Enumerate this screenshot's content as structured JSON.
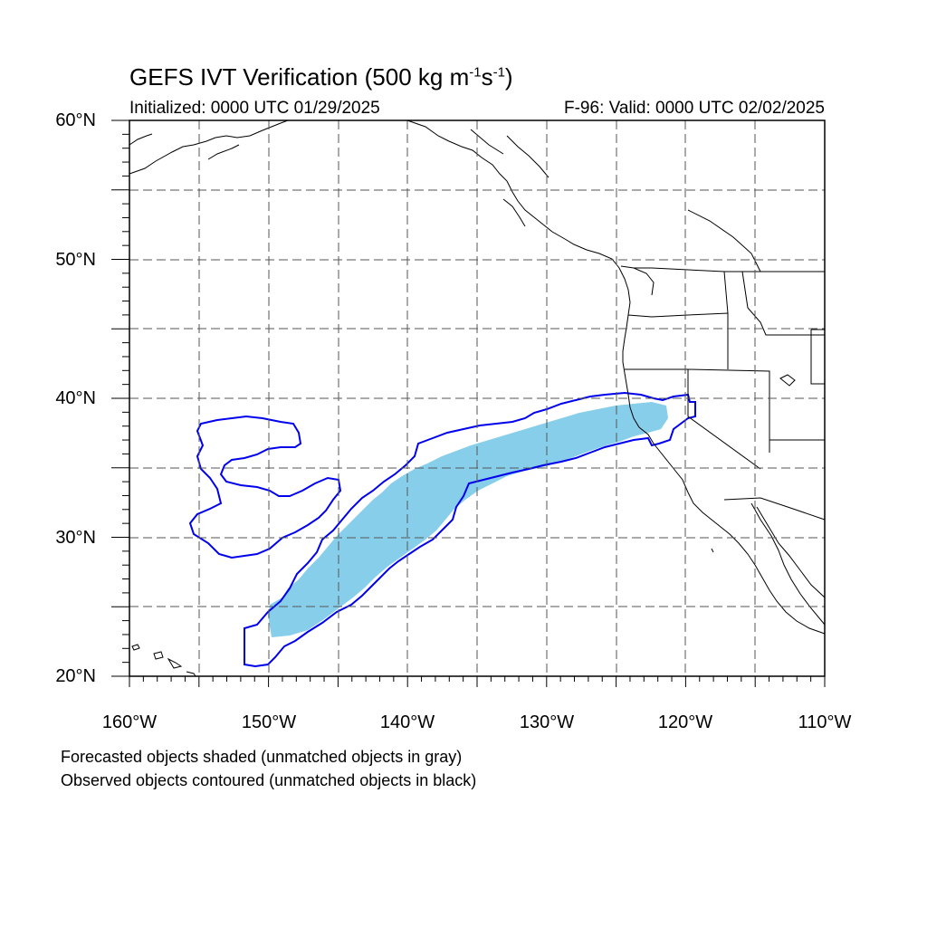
{
  "title": {
    "main": "GEFS IVT Verification (500 kg m",
    "exp1": "-1",
    "mid": "s",
    "exp2": "-1",
    "end": ")"
  },
  "subtitle": {
    "initialized": "Initialized: 0000 UTC 01/29/2025",
    "valid": "F-96: Valid: 0000 UTC 02/02/2025"
  },
  "axes": {
    "lat_labels": [
      "60°N",
      "50°N",
      "40°N",
      "30°N",
      "20°N"
    ],
    "lon_labels": [
      "160°W",
      "150°W",
      "140°W",
      "130°W",
      "120°W",
      "110°W"
    ],
    "lat_range": [
      20,
      60
    ],
    "lon_range": [
      -160,
      -110
    ],
    "gridline_spacing_deg": 5
  },
  "legend": {
    "line1": "Forecasted objects shaded (unmatched objects in gray)",
    "line2": "Observed objects contoured (unmatched objects in black)"
  },
  "colors": {
    "forecast_fill": "#87ceeb",
    "observed_contour": "#0000ee",
    "coastline": "#000000",
    "grid": "#555555"
  },
  "objects": {
    "forecast_shaded": "matched forecast IVT object (sky blue)",
    "observed_contours": "matched observed IVT objects (blue outlines)"
  }
}
